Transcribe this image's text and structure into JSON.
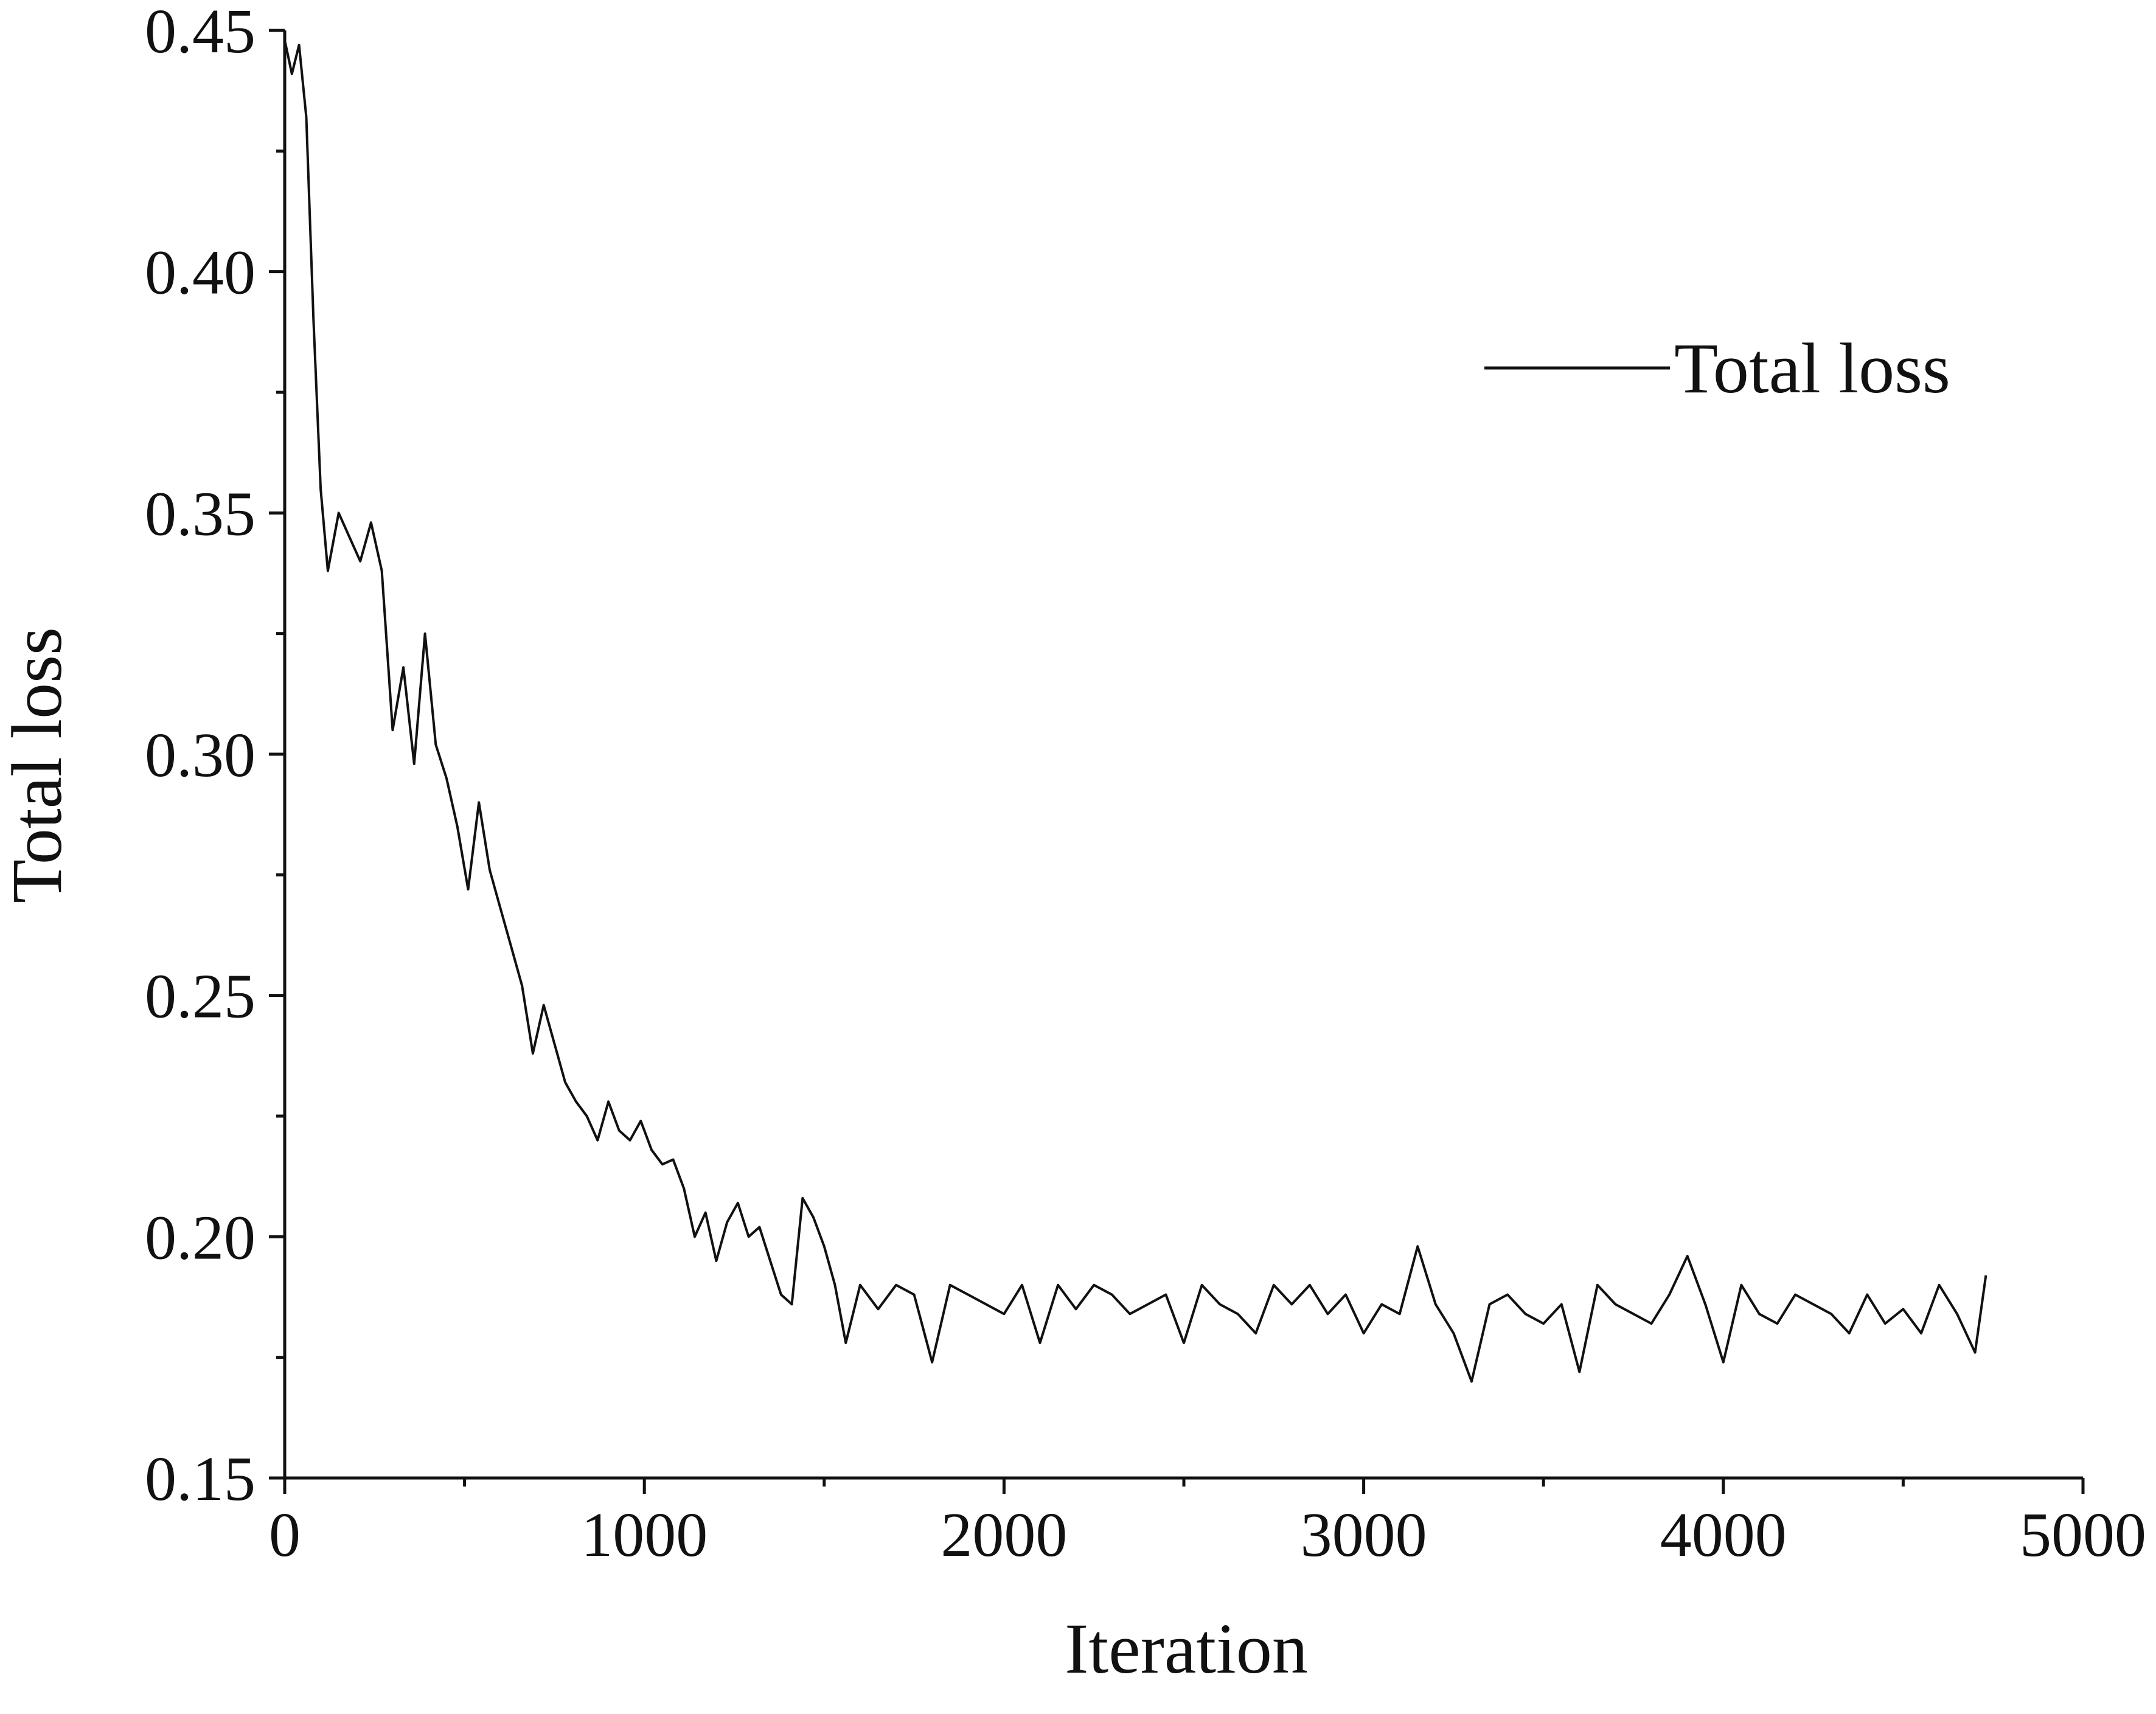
{
  "chart_data": {
    "type": "line",
    "title": "",
    "xlabel": "Iteration",
    "ylabel": "Total loss",
    "xlim": [
      0,
      5000
    ],
    "ylim": [
      0.15,
      0.45
    ],
    "x_ticks": [
      "0",
      "1000",
      "2000",
      "3000",
      "4000",
      "5000"
    ],
    "y_ticks": [
      "0.15",
      "0.20",
      "0.25",
      "0.30",
      "0.35",
      "0.40",
      "0.45"
    ],
    "grid": false,
    "legend_position": "top-right",
    "line_color": "#111111",
    "series": [
      {
        "name": "Total loss",
        "x": [
          0,
          20,
          40,
          60,
          80,
          100,
          120,
          150,
          180,
          210,
          240,
          270,
          300,
          330,
          360,
          390,
          420,
          450,
          480,
          510,
          540,
          570,
          600,
          630,
          660,
          690,
          720,
          750,
          780,
          810,
          840,
          870,
          900,
          930,
          960,
          990,
          1020,
          1050,
          1080,
          1110,
          1140,
          1170,
          1200,
          1230,
          1260,
          1290,
          1320,
          1350,
          1380,
          1410,
          1440,
          1470,
          1500,
          1530,
          1560,
          1600,
          1650,
          1700,
          1750,
          1800,
          1850,
          1900,
          1950,
          2000,
          2050,
          2100,
          2150,
          2200,
          2250,
          2300,
          2350,
          2400,
          2450,
          2500,
          2550,
          2600,
          2650,
          2700,
          2750,
          2800,
          2850,
          2900,
          2950,
          3000,
          3050,
          3100,
          3150,
          3200,
          3250,
          3300,
          3350,
          3400,
          3450,
          3500,
          3550,
          3600,
          3650,
          3700,
          3750,
          3800,
          3850,
          3900,
          3950,
          4000,
          4050,
          4100,
          4150,
          4200,
          4250,
          4300,
          4350,
          4400,
          4450,
          4500,
          4550,
          4600,
          4650,
          4700,
          4730
        ],
        "values": [
          0.448,
          0.441,
          0.447,
          0.432,
          0.39,
          0.355,
          0.338,
          0.35,
          0.345,
          0.34,
          0.348,
          0.338,
          0.305,
          0.318,
          0.298,
          0.325,
          0.302,
          0.295,
          0.285,
          0.272,
          0.29,
          0.276,
          0.268,
          0.26,
          0.252,
          0.238,
          0.248,
          0.24,
          0.232,
          0.228,
          0.225,
          0.22,
          0.228,
          0.222,
          0.22,
          0.224,
          0.218,
          0.215,
          0.216,
          0.21,
          0.2,
          0.205,
          0.195,
          0.203,
          0.207,
          0.2,
          0.202,
          0.195,
          0.188,
          0.186,
          0.208,
          0.204,
          0.198,
          0.19,
          0.178,
          0.19,
          0.185,
          0.19,
          0.188,
          0.174,
          0.19,
          0.188,
          0.186,
          0.184,
          0.19,
          0.178,
          0.19,
          0.185,
          0.19,
          0.188,
          0.184,
          0.186,
          0.188,
          0.178,
          0.19,
          0.186,
          0.184,
          0.18,
          0.19,
          0.186,
          0.19,
          0.184,
          0.188,
          0.18,
          0.186,
          0.184,
          0.198,
          0.186,
          0.18,
          0.17,
          0.186,
          0.188,
          0.184,
          0.182,
          0.186,
          0.172,
          0.19,
          0.186,
          0.184,
          0.182,
          0.188,
          0.196,
          0.186,
          0.174,
          0.19,
          0.184,
          0.182,
          0.188,
          0.186,
          0.184,
          0.18,
          0.188,
          0.182,
          0.185,
          0.18,
          0.19,
          0.184,
          0.176,
          0.192
        ]
      }
    ]
  }
}
